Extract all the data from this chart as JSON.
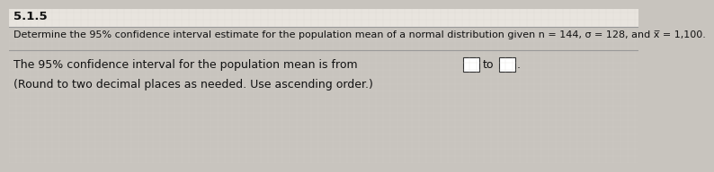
{
  "bg_color": "#c8c4be",
  "top_label": "5.1.5",
  "line1": "Determine the 95% confidence interval estimate for the population mean of a normal distribution given n = 144, σ = 128, and x̅ = 1,100.",
  "line2_prefix": "The 95% confidence interval for the population mean is from ",
  "line2_to": "to",
  "line2_suffix": ".",
  "line3": "(Round to two decimal places as needed. Use ascending order.)",
  "font_size_top": 9.5,
  "font_size_line1": 8.0,
  "font_size_line2": 9.0,
  "font_size_line3": 9.0,
  "text_color": "#111111",
  "box_color": "#ffffff",
  "box_edge_color": "#333333",
  "divider_color": "#aaaaaa",
  "top_bg": "#e8e4de"
}
